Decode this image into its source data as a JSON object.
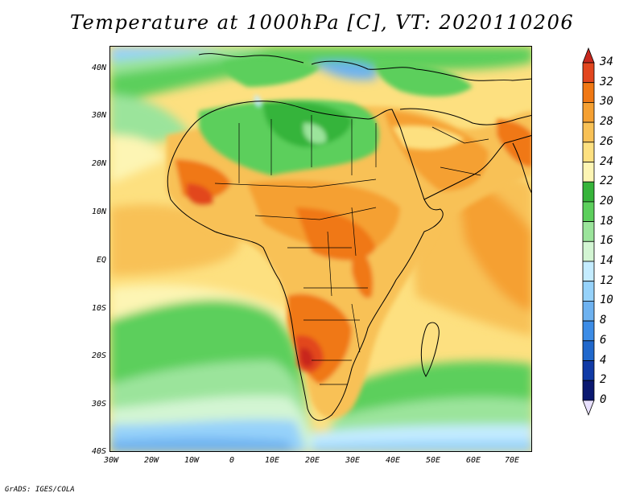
{
  "title": "Temperature at 1000hPa [C], VT: 2020110206",
  "credit": "GrADS: IGES/COLA",
  "map": {
    "projection": "lat-lon",
    "lon_range": [
      -30,
      75
    ],
    "lat_range": [
      -40,
      45
    ],
    "variable": "temperature",
    "level": "1000hPa",
    "units": "C",
    "features": [
      "coastlines",
      "country-borders",
      "filled-contours"
    ]
  },
  "axes": {
    "lat_labels": [
      "40N",
      "30N",
      "20N",
      "10N",
      "EQ",
      "10S",
      "20S",
      "30S",
      "40S"
    ],
    "lat_values": [
      40,
      30,
      20,
      10,
      0,
      -10,
      -20,
      -30,
      -40
    ],
    "lon_labels": [
      "30W",
      "20W",
      "10W",
      "0",
      "10E",
      "20E",
      "30E",
      "40E",
      "50E",
      "60E",
      "70E"
    ],
    "lon_values": [
      -30,
      -20,
      -10,
      0,
      10,
      20,
      30,
      40,
      50,
      60,
      70
    ]
  },
  "colorbar": {
    "labels": [
      "34",
      "32",
      "30",
      "28",
      "26",
      "24",
      "22",
      "20",
      "18",
      "16",
      "14",
      "12",
      "10",
      "8",
      "6",
      "4",
      "2",
      "0"
    ],
    "colors": [
      "#c8281e",
      "#e2461e",
      "#f07814",
      "#f5a032",
      "#f8c156",
      "#fde080",
      "#fdf5b4",
      "#36b43a",
      "#5ccf5c",
      "#9be49b",
      "#d3f5d3",
      "#c4ecff",
      "#96d2fa",
      "#6eb2f0",
      "#3c8ce6",
      "#2068cc",
      "#103aa6",
      "#0a1870",
      "#e8e0ff"
    ],
    "top_color": "#c8281e",
    "bottom_color": "#e8e0ff"
  }
}
